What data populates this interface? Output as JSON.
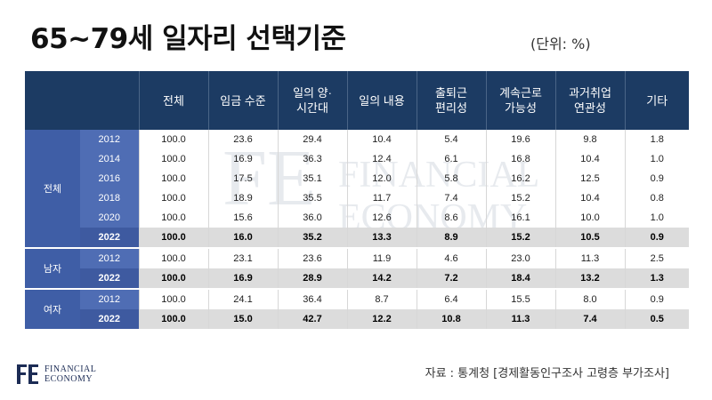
{
  "title": "65~79세 일자리 선택기준",
  "unit": "(단위: %)",
  "source": "자료 : 통계청 [경제활동인구조사 고령층 부가조사]",
  "brand": {
    "line1": "FINANCIAL",
    "line2": "ECONOMY",
    "mark": "FE",
    "watermark1": "FINANCIAL",
    "watermark2": "ECONOMY"
  },
  "colors": {
    "header_bg": "#1c3b63",
    "group_bg": "#3f5ea6",
    "highlight_row": "#dcdcdc"
  },
  "chart_data": {
    "type": "table",
    "columns": [
      "전체",
      "임금 수준",
      "일의 양·\n시간대",
      "일의 내용",
      "출퇴근\n편리성",
      "계속근로\n가능성",
      "과거취업\n연관성",
      "기타"
    ],
    "groups": [
      {
        "name": "전체",
        "rows": [
          {
            "year": "2012",
            "values": [
              "100.0",
              "23.6",
              "29.4",
              "10.4",
              "5.4",
              "19.6",
              "9.8",
              "1.8"
            ]
          },
          {
            "year": "2014",
            "values": [
              "100.0",
              "16.9",
              "36.3",
              "12.4",
              "6.1",
              "16.8",
              "10.4",
              "1.0"
            ]
          },
          {
            "year": "2016",
            "values": [
              "100.0",
              "17.5",
              "35.1",
              "12.0",
              "5.8",
              "16.2",
              "12.5",
              "0.9"
            ]
          },
          {
            "year": "2018",
            "values": [
              "100.0",
              "18.9",
              "35.5",
              "11.7",
              "7.4",
              "15.2",
              "10.4",
              "0.8"
            ]
          },
          {
            "year": "2020",
            "values": [
              "100.0",
              "15.6",
              "36.0",
              "12.6",
              "8.6",
              "16.1",
              "10.0",
              "1.0"
            ]
          },
          {
            "year": "2022",
            "values": [
              "100.0",
              "16.0",
              "35.2",
              "13.3",
              "8.9",
              "15.2",
              "10.5",
              "0.9"
            ],
            "highlight": true
          }
        ]
      },
      {
        "name": "남자",
        "rows": [
          {
            "year": "2012",
            "values": [
              "100.0",
              "23.1",
              "23.6",
              "11.9",
              "4.6",
              "23.0",
              "11.3",
              "2.5"
            ]
          },
          {
            "year": "2022",
            "values": [
              "100.0",
              "16.9",
              "28.9",
              "14.2",
              "7.2",
              "18.4",
              "13.2",
              "1.3"
            ],
            "highlight": true
          }
        ]
      },
      {
        "name": "여자",
        "rows": [
          {
            "year": "2012",
            "values": [
              "100.0",
              "24.1",
              "36.4",
              "8.7",
              "6.4",
              "15.5",
              "8.0",
              "0.9"
            ]
          },
          {
            "year": "2022",
            "values": [
              "100.0",
              "15.0",
              "42.7",
              "12.2",
              "10.8",
              "11.3",
              "7.4",
              "0.5"
            ],
            "highlight": true
          }
        ]
      }
    ]
  }
}
